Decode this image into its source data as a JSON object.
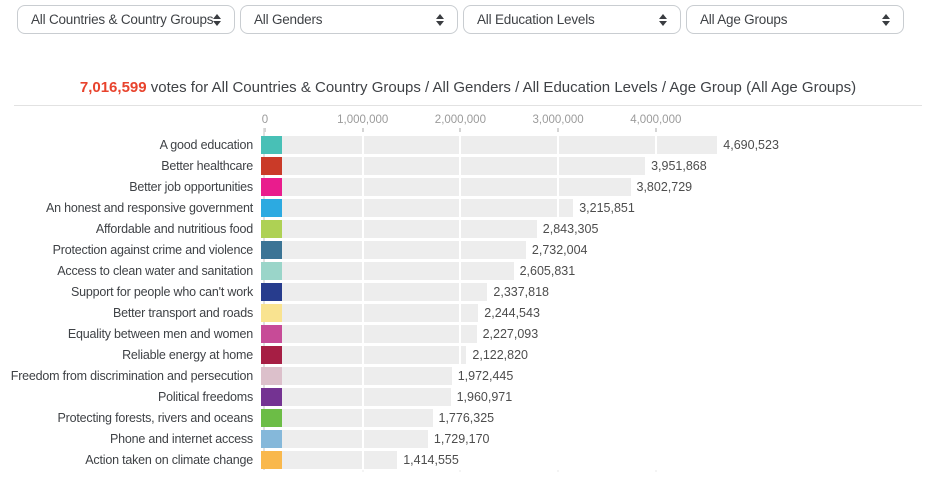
{
  "filters": [
    {
      "label": "All Countries & Country Groups"
    },
    {
      "label": "All Genders"
    },
    {
      "label": "All Education Levels"
    },
    {
      "label": "All Age Groups"
    }
  ],
  "headline": {
    "count": "7,016,599",
    "text": " votes for All Countries & Country Groups / All Genders / All Education Levels / Age Group (All Age Groups)"
  },
  "colors": {
    "accent_red": "#e8432d",
    "bar_track": "#ededed"
  },
  "chart_data": {
    "type": "bar",
    "orientation": "horizontal",
    "title": "",
    "xlabel": "",
    "ylabel": "",
    "xlim": [
      0,
      4800000
    ],
    "grid": true,
    "legend": false,
    "axis_ticks": [
      "0",
      "1,000,000",
      "2,000,000",
      "3,000,000",
      "4,000,000"
    ],
    "axis_tick_values": [
      0,
      1000000,
      2000000,
      3000000,
      4000000
    ],
    "categories": [
      "A good education",
      "Better healthcare",
      "Better job opportunities",
      "An honest and responsive government",
      "Affordable and nutritious food",
      "Protection against crime and violence",
      "Access to clean water and sanitation",
      "Support for people who can't work",
      "Better transport and roads",
      "Equality between men and women",
      "Reliable energy at home",
      "Freedom from discrimination and persecution",
      "Political freedoms",
      "Protecting forests, rivers and oceans",
      "Phone and internet access",
      "Action taken on climate change"
    ],
    "values": [
      4690523,
      3951868,
      3802729,
      3215851,
      2843305,
      2732004,
      2605831,
      2337818,
      2244543,
      2227093,
      2122820,
      1972445,
      1960971,
      1776325,
      1729170,
      1414555
    ],
    "value_labels": [
      "4,690,523",
      "3,951,868",
      "3,802,729",
      "3,215,851",
      "2,843,305",
      "2,732,004",
      "2,605,831",
      "2,337,818",
      "2,244,543",
      "2,227,093",
      "2,122,820",
      "1,972,445",
      "1,960,971",
      "1,776,325",
      "1,729,170",
      "1,414,555"
    ],
    "bar_colors": [
      "#48c0b6",
      "#ca3a28",
      "#e91c8d",
      "#2caae1",
      "#aed154",
      "#3b7495",
      "#9ad5c9",
      "#273c8d",
      "#f9e390",
      "#c74b97",
      "#a61e44",
      "#dcc0cb",
      "#743392",
      "#6cbd46",
      "#85b8da",
      "#f9b84c"
    ]
  }
}
